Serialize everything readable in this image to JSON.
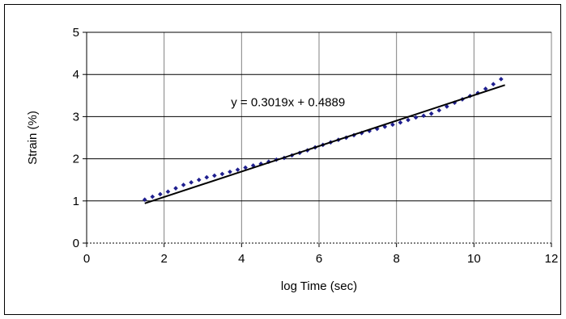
{
  "chart_data": {
    "type": "scatter",
    "title": "",
    "xlabel": "log Time (sec)",
    "ylabel": "Strain (%)",
    "xlim": [
      0,
      12
    ],
    "ylim": [
      0,
      5
    ],
    "xticks": [
      0,
      2,
      4,
      6,
      8,
      10,
      12
    ],
    "yticks": [
      0,
      1,
      2,
      3,
      4,
      5
    ],
    "grid": true,
    "legend": "none",
    "colors": {
      "points": "#1f1f8f",
      "trendline": "#000000",
      "grid": "#808080"
    },
    "series": [
      {
        "x": [
          1.5,
          1.7,
          1.9,
          2.1,
          2.3,
          2.5,
          2.7,
          2.9,
          3.1,
          3.3,
          3.5,
          3.7,
          3.9,
          4.1,
          4.3,
          4.5,
          4.7,
          4.9,
          5.1,
          5.3,
          5.5,
          5.7,
          5.9,
          6.1,
          6.3,
          6.5,
          6.7,
          6.9,
          7.1,
          7.3,
          7.5,
          7.7,
          7.9,
          8.1,
          8.3,
          8.5,
          8.7,
          8.9,
          9.1,
          9.3,
          9.5,
          9.7,
          9.9,
          10.1,
          10.3,
          10.5,
          10.7
        ],
        "y": [
          1.03,
          1.1,
          1.16,
          1.22,
          1.3,
          1.38,
          1.44,
          1.5,
          1.56,
          1.6,
          1.64,
          1.69,
          1.74,
          1.79,
          1.84,
          1.88,
          1.93,
          1.98,
          2.02,
          2.08,
          2.14,
          2.2,
          2.27,
          2.33,
          2.39,
          2.45,
          2.5,
          2.56,
          2.61,
          2.66,
          2.71,
          2.76,
          2.81,
          2.86,
          2.92,
          2.98,
          3.02,
          3.07,
          3.15,
          3.24,
          3.33,
          3.41,
          3.49,
          3.56,
          3.66,
          3.77,
          3.89
        ]
      }
    ],
    "trendline": {
      "slope": 0.3019,
      "intercept": 0.4889,
      "x_range": [
        1.5,
        10.8
      ],
      "equation": "y = 0.3019x + 0.4889",
      "label_at": [
        5.2,
        3.25
      ]
    }
  }
}
